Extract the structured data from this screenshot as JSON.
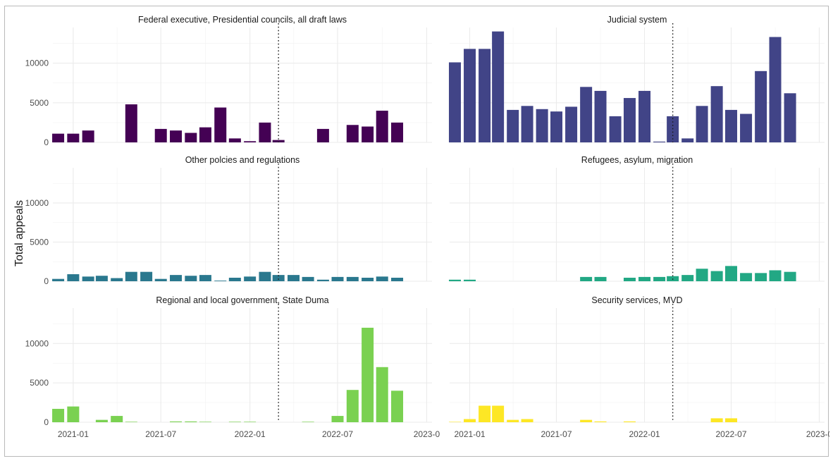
{
  "chart_data": {
    "type": "bar",
    "ylabel": "Total appeals",
    "xlabel": "",
    "ylim": [
      0,
      14500
    ],
    "x_range": [
      "2020-11-20",
      "2023-01-12"
    ],
    "x_ticks": [
      {
        "date": "2021-01-01",
        "label": "2021-01"
      },
      {
        "date": "2021-07-01",
        "label": "2021-07"
      },
      {
        "date": "2022-01-01",
        "label": "2022-01"
      },
      {
        "date": "2022-07-01",
        "label": "2022-07"
      },
      {
        "date": "2023-01-01",
        "label": "2023-0"
      }
    ],
    "y_ticks": [
      0,
      5000,
      10000
    ],
    "reference_line_date": "2022-03-01",
    "months": [
      "2020-12",
      "2021-01",
      "2021-02",
      "2021-03",
      "2021-04",
      "2021-05",
      "2021-06",
      "2021-07",
      "2021-08",
      "2021-09",
      "2021-10",
      "2021-11",
      "2021-12",
      "2022-01",
      "2022-02",
      "2022-03",
      "2022-04",
      "2022-05",
      "2022-06",
      "2022-07",
      "2022-08",
      "2022-09",
      "2022-10",
      "2022-11",
      "2022-12"
    ],
    "panels": [
      {
        "title": "Federal executive, Presidential councils, all draft laws",
        "color": "#440154",
        "values": [
          1100,
          1100,
          1500,
          0,
          0,
          4800,
          0,
          1700,
          1500,
          1200,
          1900,
          4400,
          500,
          150,
          2500,
          300,
          0,
          0,
          1700,
          0,
          2200,
          2000,
          4000,
          2500,
          null
        ]
      },
      {
        "title": "Judicial system",
        "color": "#414487",
        "values": [
          10100,
          11800,
          11800,
          14000,
          4100,
          4600,
          4200,
          3900,
          4500,
          7000,
          6500,
          3300,
          5600,
          6500,
          100,
          3300,
          500,
          4600,
          7100,
          4100,
          3600,
          9000,
          13300,
          6200,
          null
        ]
      },
      {
        "title": "Other polcies and regulations",
        "color": "#2A788E",
        "values": [
          300,
          900,
          600,
          700,
          400,
          1200,
          1200,
          300,
          800,
          700,
          800,
          80,
          450,
          600,
          1200,
          800,
          800,
          550,
          200,
          550,
          550,
          450,
          600,
          450,
          null
        ]
      },
      {
        "title": "Refugees, asylum, migration",
        "color": "#22A884",
        "values": [
          200,
          200,
          0,
          0,
          0,
          0,
          0,
          0,
          0,
          550,
          550,
          0,
          450,
          550,
          550,
          650,
          800,
          1600,
          1300,
          1950,
          1050,
          1050,
          1400,
          1200,
          null
        ]
      },
      {
        "title": "Regional and local government, State Duma",
        "color": "#7AD151",
        "values": [
          1700,
          2000,
          0,
          300,
          800,
          60,
          0,
          0,
          100,
          100,
          60,
          0,
          60,
          60,
          0,
          0,
          0,
          60,
          0,
          800,
          4100,
          12000,
          7000,
          4000,
          null
        ]
      },
      {
        "title": "Security services, MVD",
        "color": "#FDE725",
        "values": [
          50,
          400,
          2100,
          2100,
          300,
          400,
          0,
          0,
          0,
          300,
          100,
          0,
          100,
          0,
          0,
          0,
          0,
          0,
          500,
          500,
          0,
          0,
          0,
          0,
          null
        ]
      }
    ]
  }
}
